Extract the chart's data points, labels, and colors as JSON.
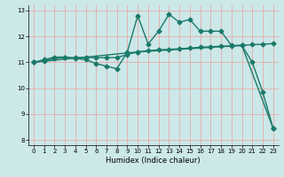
{
  "xlabel": "Humidex (Indice chaleur)",
  "bg_color": "#cce8e8",
  "grid_color": "#e8aaaa",
  "line_color": "#1a7a6a",
  "xlim": [
    -0.5,
    23.5
  ],
  "ylim": [
    7.8,
    13.2
  ],
  "xticks": [
    0,
    1,
    2,
    3,
    4,
    5,
    6,
    7,
    8,
    9,
    10,
    11,
    12,
    13,
    14,
    15,
    16,
    17,
    18,
    19,
    20,
    21,
    22,
    23
  ],
  "yticks": [
    8,
    9,
    10,
    11,
    12,
    13
  ],
  "line1_x": [
    0,
    1,
    2,
    3,
    4,
    5,
    6,
    7,
    8,
    9,
    10,
    11,
    12,
    13,
    14,
    15,
    16,
    17,
    18,
    19,
    20,
    21,
    22,
    23
  ],
  "line1_y": [
    11.0,
    11.1,
    11.2,
    11.2,
    11.15,
    11.1,
    10.95,
    10.85,
    10.75,
    11.4,
    12.8,
    11.7,
    12.2,
    12.85,
    12.55,
    12.65,
    12.2,
    12.2,
    12.2,
    11.65,
    11.65,
    11.0,
    9.85,
    8.45
  ],
  "line2_x": [
    0,
    1,
    2,
    3,
    4,
    5,
    6,
    7,
    8,
    9,
    10,
    11,
    12,
    13,
    14,
    15,
    16,
    17,
    18,
    19,
    20,
    21,
    22,
    23
  ],
  "line2_y": [
    11.0,
    11.05,
    11.15,
    11.18,
    11.18,
    11.18,
    11.18,
    11.18,
    11.18,
    11.3,
    11.4,
    11.45,
    11.48,
    11.5,
    11.52,
    11.55,
    11.58,
    11.6,
    11.62,
    11.63,
    11.65,
    11.68,
    11.7,
    11.72
  ],
  "line3_x": [
    0,
    10,
    20,
    23
  ],
  "line3_y": [
    11.0,
    11.4,
    11.65,
    8.45
  ],
  "markersize": 2.5,
  "linewidth": 1.0
}
